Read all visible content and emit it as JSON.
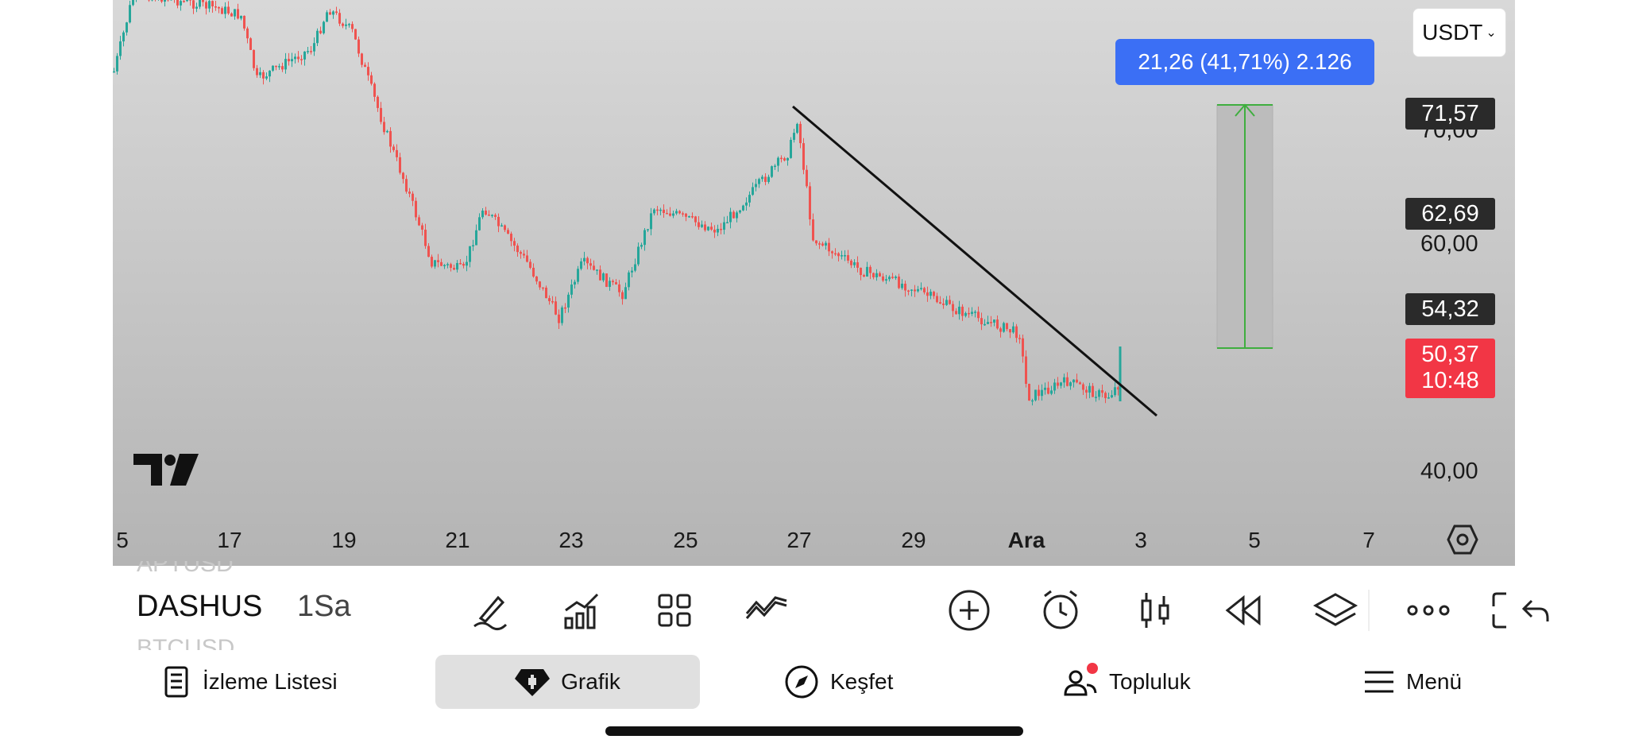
{
  "currency_select": {
    "label": "USDT"
  },
  "measure_label": "21,26 (41,71%) 2.126",
  "price_tags": [
    {
      "value": "71,57",
      "type": "dark"
    },
    {
      "value": "62,69",
      "type": "dark"
    },
    {
      "value": "54,32",
      "type": "dark"
    },
    {
      "value": "50,37",
      "sub": "10:48",
      "type": "red"
    }
  ],
  "price_axis_labels": [
    "70,00",
    "60,00",
    "40,00"
  ],
  "time_axis_labels": [
    "5",
    "17",
    "19",
    "21",
    "23",
    "25",
    "27",
    "29",
    "Ara",
    "3",
    "5",
    "7"
  ],
  "symbol": {
    "prev": "APTUSD",
    "current": "DASHUS",
    "next": "BTCUSD",
    "interval": "1Sa"
  },
  "toolbar_icons": [
    "pen-icon",
    "indicators-icon",
    "templates-icon",
    "compare-icon",
    "add-icon",
    "alert-icon",
    "chart-type-icon",
    "replay-icon",
    "layers-icon",
    "more-icon",
    "undo-icon",
    "fullscreen-icon"
  ],
  "nav": [
    {
      "label": "İzleme Listesi",
      "icon": "watchlist-icon"
    },
    {
      "label": "Grafik",
      "icon": "chart-icon",
      "active": true
    },
    {
      "label": "Keşfet",
      "icon": "compass-icon"
    },
    {
      "label": "Topluluk",
      "icon": "community-icon",
      "badge": true
    },
    {
      "label": "Menü",
      "icon": "menu-icon"
    }
  ],
  "colors": {
    "up": "#26a69a",
    "down": "#ef5350",
    "accent": "#3b6ff5",
    "last_price": "#f23645"
  }
}
